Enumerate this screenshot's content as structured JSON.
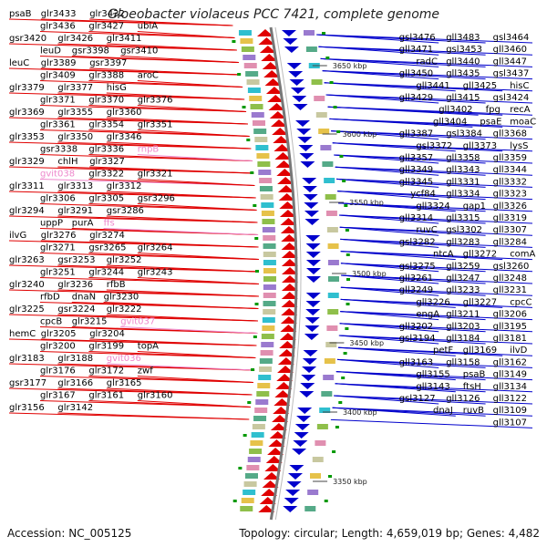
{
  "title": "Gloeobacter violaceus PCC 7421, complete genome",
  "footer": {
    "accession": "Accession: NC_005125",
    "summary": "Topology: circular; Length: 4,659,019 bp; Genes: 4,482"
  },
  "colors": {
    "forward": "#e00000",
    "reverse": "#0000cc",
    "rna": "#ee88cc",
    "backbone": "#777777",
    "tick": "#009900"
  },
  "scale_ticks": [
    "3650 kbp",
    "3600 kbp",
    "3550 kbp",
    "3500 kbp",
    "3450 kbp",
    "3400 kbp",
    "3350 kbp"
  ],
  "left_labels": [
    "psaB",
    "glr3433",
    "glr3432",
    "glr3436",
    "glr3427",
    "ubiA",
    "gsr3420",
    "glr3426",
    "glr3411",
    "leuD",
    "gsr3398",
    "gsr3410",
    "leuC",
    "glr3389",
    "gsr3397",
    "glr3409",
    "glr3388",
    "aroC",
    "glr3379",
    "glr3377",
    "hisG",
    "glr3371",
    "glr3370",
    "glr3376",
    "glr3369",
    "glr3355",
    "glr3360",
    "glr3361",
    "glr3354",
    "glr3351",
    "glr3353",
    "glr3350",
    "glr3346",
    "gsr3338",
    "glr3336",
    "rnpB",
    "glr3329",
    "chlH",
    "glr3327",
    "gvit038",
    "glr3322",
    "glr3321",
    "glr3311",
    "glr3313",
    "glr3312",
    "glr3306",
    "glr3305",
    "gsr3296",
    "glr3294",
    "glr3291",
    "gsr3286",
    "uppP",
    "purA",
    "ffs",
    "ilvG",
    "glr3276",
    "glr3274",
    "glr3271",
    "gsr3265",
    "glr3264",
    "glr3263",
    "gsr3253",
    "glr3252",
    "glr3251",
    "glr3244",
    "glr3243",
    "glr3240",
    "glr3236",
    "rfbB",
    "rfbD",
    "dnaN",
    "glr3230",
    "glr3225",
    "gsr3224",
    "glr3222",
    "cpcB",
    "glr3215",
    "gvit037",
    "hemC",
    "glr3205",
    "glr3204",
    "glr3200",
    "glr3199",
    "topA",
    "glr3183",
    "glr3188",
    "gvit036",
    "glr3176",
    "glr3172",
    "zwf",
    "gsr3177",
    "glr3166",
    "glr3165",
    "glr3167",
    "glr3161",
    "glr3160",
    "glr3156",
    "glr3142"
  ],
  "right_labels": [
    "gsl3476",
    "gll3483",
    "gsl3464",
    "gll3471",
    "gsl3453",
    "gll3460",
    "radC",
    "gll3440",
    "gll3447",
    "gll3450",
    "gll3435",
    "gsl3437",
    "gll3441",
    "gll3425",
    "hisC",
    "gll3429",
    "gll3415",
    "gsl3424",
    "gll3402",
    "fpg",
    "recA",
    "gll3404",
    "psaE",
    "moaC",
    "gll3387",
    "gsl3384",
    "gll3368",
    "gsl3372",
    "gll3373",
    "lysS",
    "gll3357",
    "gll3358",
    "gll3359",
    "gll3349",
    "gll3343",
    "gll3344",
    "gll3345",
    "gll3331",
    "gll3332",
    "ycf84",
    "gll3334",
    "gll3323",
    "gll3324",
    "gap1",
    "gll3326",
    "gll3314",
    "gll3315",
    "gll3319",
    "ruvC",
    "gsl3302",
    "gll3307",
    "gsl3282",
    "gll3283",
    "gll3284",
    "ntcA",
    "gll3272",
    "comA",
    "gsl3275",
    "gll3259",
    "gsl3260",
    "gll3261",
    "gll3247",
    "gll3248",
    "gll3249",
    "gll3233",
    "gll3231",
    "gll3226",
    "gll3227",
    "cpcC",
    "engA",
    "gll3211",
    "gll3206",
    "gll3202",
    "gll3203",
    "gll3195",
    "gsl3194",
    "gll3184",
    "gll3181",
    "petF",
    "gll3169",
    "ilvD",
    "gll3163",
    "gll3158",
    "gll3162",
    "gll3155",
    "psaB",
    "gll3149",
    "gll3143",
    "ftsH",
    "gll3134",
    "gsl3127",
    "gll3126",
    "gll3122",
    "dnaJ",
    "ruvB",
    "gll3109",
    "gll3107"
  ]
}
